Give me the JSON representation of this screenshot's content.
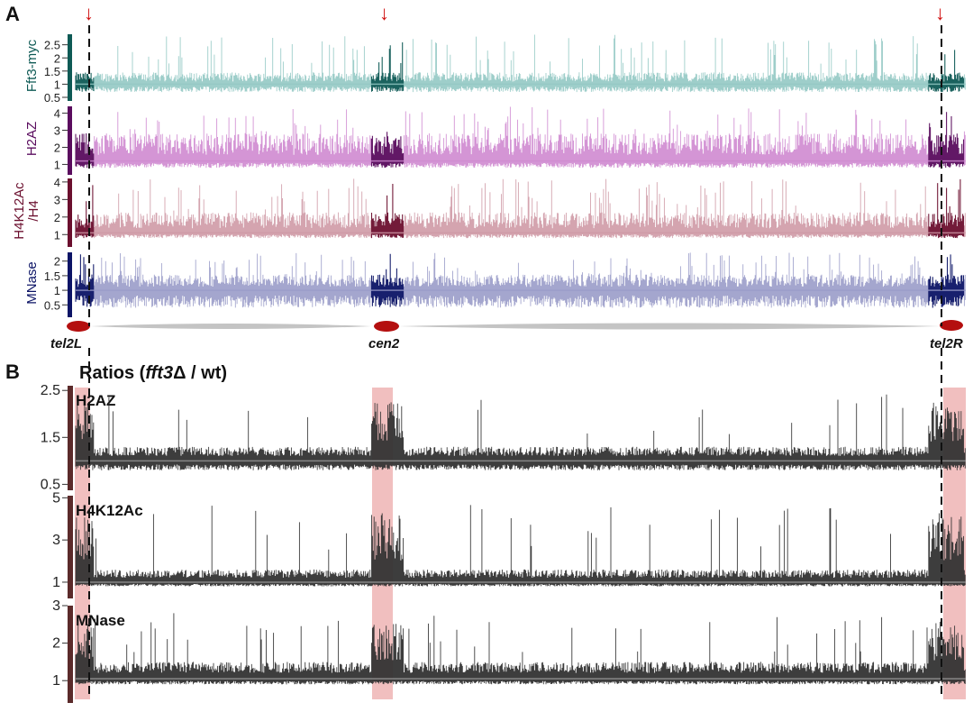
{
  "colors": {
    "fft3_myc": "#0e5a55",
    "fft3_myc_light": "#94c9c4",
    "h2az": "#5a0c5e",
    "h2az_light": "#cf8ad0",
    "h4k12ac": "#6b0f2e",
    "h4k12ac_light": "#cf9aa6",
    "mnase": "#0c1466",
    "mnase_light": "#9a9cc9",
    "ratio_dark": "#333333",
    "ratio_mid": "#8a8a8a",
    "highlight": "#e58a8a",
    "marker": "#b40f0f",
    "chromosome": "#c8c8c8",
    "arrow": "#d01010"
  },
  "panel_a": {
    "label": "A",
    "arrow_glyph": "↓",
    "markers": {
      "left": "tel2L",
      "center": "cen2",
      "right": "tel2R"
    }
  },
  "panel_b": {
    "label": "B",
    "title_prefix": "Ratios (",
    "title_italic": "fft3",
    "title_delta": "Δ",
    "title_suffix": " / wt)"
  },
  "chart_data": [
    {
      "type": "line",
      "panel": "A",
      "ylabel": "Fft3-myc",
      "yticks": [
        "0.5",
        "1",
        "1.5",
        "2",
        "2.5"
      ],
      "ylim": [
        0.5,
        2.9
      ],
      "baseline": 1.0,
      "typical_range": [
        0.7,
        1.5
      ],
      "note_region_enrichment": "tel2L, cen2, tel2R"
    },
    {
      "type": "line",
      "panel": "A",
      "ylabel": "H2AZ",
      "yticks": [
        "1",
        "2",
        "3",
        "4"
      ],
      "ylim": [
        0.6,
        4.4
      ],
      "baseline": 1.2,
      "typical_range": [
        0.8,
        3.0
      ]
    },
    {
      "type": "line",
      "panel": "A",
      "ylabel": "H4K12Ac /H4",
      "ylabel_lines": [
        "H4K12Ac",
        "/H4"
      ],
      "yticks": [
        "1",
        "2",
        "3",
        "4"
      ],
      "ylim": [
        0.5,
        4.2
      ],
      "baseline": 1.1,
      "typical_range": [
        0.8,
        2.4
      ]
    },
    {
      "type": "line",
      "panel": "A",
      "ylabel": "MNase",
      "yticks": [
        "0.5",
        "1",
        "1.5",
        "2"
      ],
      "ylim": [
        0.2,
        2.3
      ],
      "baseline": 1.0,
      "typical_range": [
        0.4,
        1.6
      ]
    },
    {
      "type": "line",
      "panel": "B",
      "ylabel": "H2AZ",
      "yticks": [
        "0.5",
        "1.5",
        "2.5"
      ],
      "ylim": [
        0.45,
        2.6
      ],
      "baseline": 1.0,
      "typical_range": [
        0.8,
        1.3
      ]
    },
    {
      "type": "line",
      "panel": "B",
      "ylabel": "H4K12Ac",
      "yticks": [
        "1",
        "3",
        "5"
      ],
      "ylim": [
        0.4,
        5.1
      ],
      "baseline": 1.0,
      "typical_range": [
        0.8,
        1.6
      ]
    },
    {
      "type": "line",
      "panel": "B",
      "ylabel": "MNase",
      "yticks": [
        "1",
        "2",
        "3"
      ],
      "ylim": [
        0.5,
        3.0
      ],
      "baseline": 1.05,
      "typical_range": [
        0.9,
        1.5
      ]
    }
  ]
}
